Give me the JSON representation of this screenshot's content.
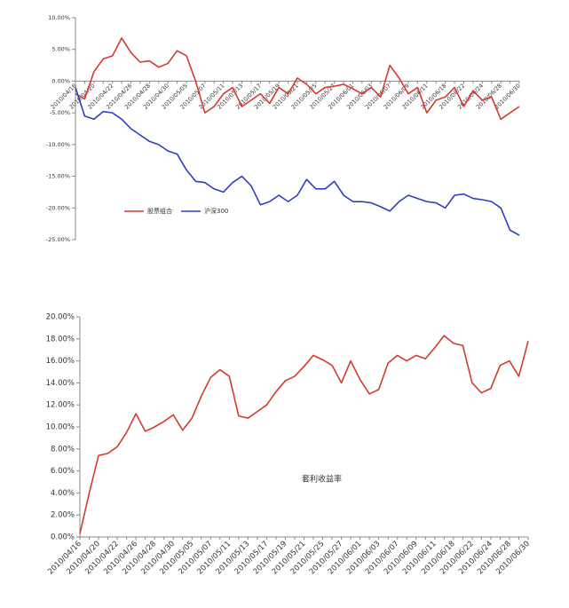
{
  "chart_data": [
    {
      "type": "line",
      "categories": [
        "2010/04/16",
        null,
        "2010/04/20",
        null,
        "2010/04/22",
        null,
        "2010/04/26",
        null,
        "2010/04/28",
        null,
        "2010/04/30",
        null,
        "2010/05/05",
        null,
        "2010/05/07",
        null,
        "2010/05/11",
        null,
        "2010/05/13",
        null,
        "2010/05/17",
        null,
        "2010/05/19",
        null,
        "2010/05/21",
        null,
        "2010/05/25",
        null,
        "2010/05/27",
        null,
        "2010/06/01",
        null,
        "2010/06/03",
        null,
        "2010/06/07",
        null,
        "2010/06/09",
        null,
        "2010/06/11",
        null,
        "2010/06/18",
        null,
        "2010/06/22",
        null,
        "2010/06/24",
        null,
        "2010/06/28",
        null,
        "2010/06/30"
      ],
      "series": [
        {
          "name": "股票组合",
          "color": "#d43a2f",
          "values": [
            -2,
            -2.8,
            1.5,
            3.5,
            4,
            6.8,
            4.5,
            3,
            3.2,
            2.2,
            2.8,
            4.8,
            4,
            0,
            -5,
            -4,
            -2,
            -1,
            -4,
            -3,
            -2,
            -3.5,
            -1,
            -2,
            0.5,
            -0.5,
            -2,
            -1,
            -0.8,
            -0.5,
            -1.2,
            -2,
            -1,
            -2.5,
            2.5,
            0.5,
            -2,
            -1,
            -5,
            -3,
            -2.5,
            -1,
            -4,
            -1.5,
            -3,
            -2.5,
            -6,
            -5,
            -4
          ]
        },
        {
          "name": "沪深300",
          "color": "#2b3fbf",
          "values": [
            -1,
            -5.5,
            -6,
            -4.8,
            -5,
            -6,
            -7.5,
            -8.5,
            -9.5,
            -10,
            -11,
            -11.5,
            -14,
            -15.8,
            -16,
            -17,
            -17.5,
            -16,
            -15,
            -16.5,
            -19.5,
            -19,
            -18,
            -19,
            -18,
            -15.5,
            -17,
            -17,
            -15.8,
            -18,
            -19,
            -19,
            -19.2,
            -19.8,
            -20.5,
            -19,
            -18,
            -18.5,
            -19,
            -19.2,
            -20,
            -18,
            -17.8,
            -18.5,
            -18.7,
            -19,
            -20,
            -23.5,
            -24.3
          ]
        }
      ],
      "ylim": [
        -25,
        10
      ],
      "yticks": [
        {
          "value": 10,
          "label": "10.00%"
        },
        {
          "value": 5,
          "label": "5.00%"
        },
        {
          "value": 0,
          "label": "0.00%"
        },
        {
          "value": -5,
          "label": "-5.00%"
        },
        {
          "value": -10,
          "label": "-10.00%"
        },
        {
          "value": -15,
          "label": "-15.00%"
        },
        {
          "value": -20,
          "label": "-20.00%"
        },
        {
          "value": -25,
          "label": "-25.00%"
        }
      ],
      "legend": "lower-left"
    },
    {
      "type": "line",
      "categories": [
        "2010/04/16",
        null,
        "2010/04/20",
        null,
        "2010/04/22",
        null,
        "2010/04/26",
        null,
        "2010/04/28",
        null,
        "2010/04/30",
        null,
        "2010/05/05",
        null,
        "2010/05/07",
        null,
        "2010/05/11",
        null,
        "2010/05/13",
        null,
        "2010/05/17",
        null,
        "2010/05/19",
        null,
        "2010/05/21",
        null,
        "2010/05/25",
        null,
        "2010/05/27",
        null,
        "2010/06/01",
        null,
        "2010/06/03",
        null,
        "2010/06/07",
        null,
        "2010/06/09",
        null,
        "2010/06/11",
        null,
        "2010/06/18",
        null,
        "2010/06/22",
        null,
        "2010/06/24",
        null,
        "2010/06/28",
        null,
        "2010/06/30"
      ],
      "series": [
        {
          "name": "套利收益率",
          "color": "#d43a2f",
          "values": [
            0.3,
            4,
            7.4,
            7.6,
            8.2,
            9.5,
            11.2,
            9.6,
            10,
            10.5,
            11.1,
            9.7,
            10.8,
            12.8,
            14.5,
            15.2,
            14.6,
            11,
            10.8,
            11.4,
            12,
            13.2,
            14.2,
            14.6,
            15.5,
            16.5,
            16.1,
            15.6,
            14,
            16,
            14.3,
            13,
            13.4,
            15.8,
            16.5,
            16,
            16.5,
            16.2,
            17.2,
            18.3,
            17.6,
            17.4,
            14,
            13.1,
            13.5,
            15.6,
            16,
            14.6,
            17.8
          ]
        }
      ],
      "ylim": [
        0,
        20
      ],
      "yticks": [
        {
          "value": 0,
          "label": "0.00%"
        },
        {
          "value": 2,
          "label": "2.00%"
        },
        {
          "value": 4,
          "label": "4.00%"
        },
        {
          "value": 6,
          "label": "6.00%"
        },
        {
          "value": 8,
          "label": "8.00%"
        },
        {
          "value": 10,
          "label": "10.00%"
        },
        {
          "value": 12,
          "label": "12.00%"
        },
        {
          "value": 14,
          "label": "14.00%"
        },
        {
          "value": 16,
          "label": "16.00%"
        },
        {
          "value": 18,
          "label": "18.00%"
        },
        {
          "value": 20,
          "label": "20.00%"
        }
      ],
      "legend": "center"
    }
  ]
}
